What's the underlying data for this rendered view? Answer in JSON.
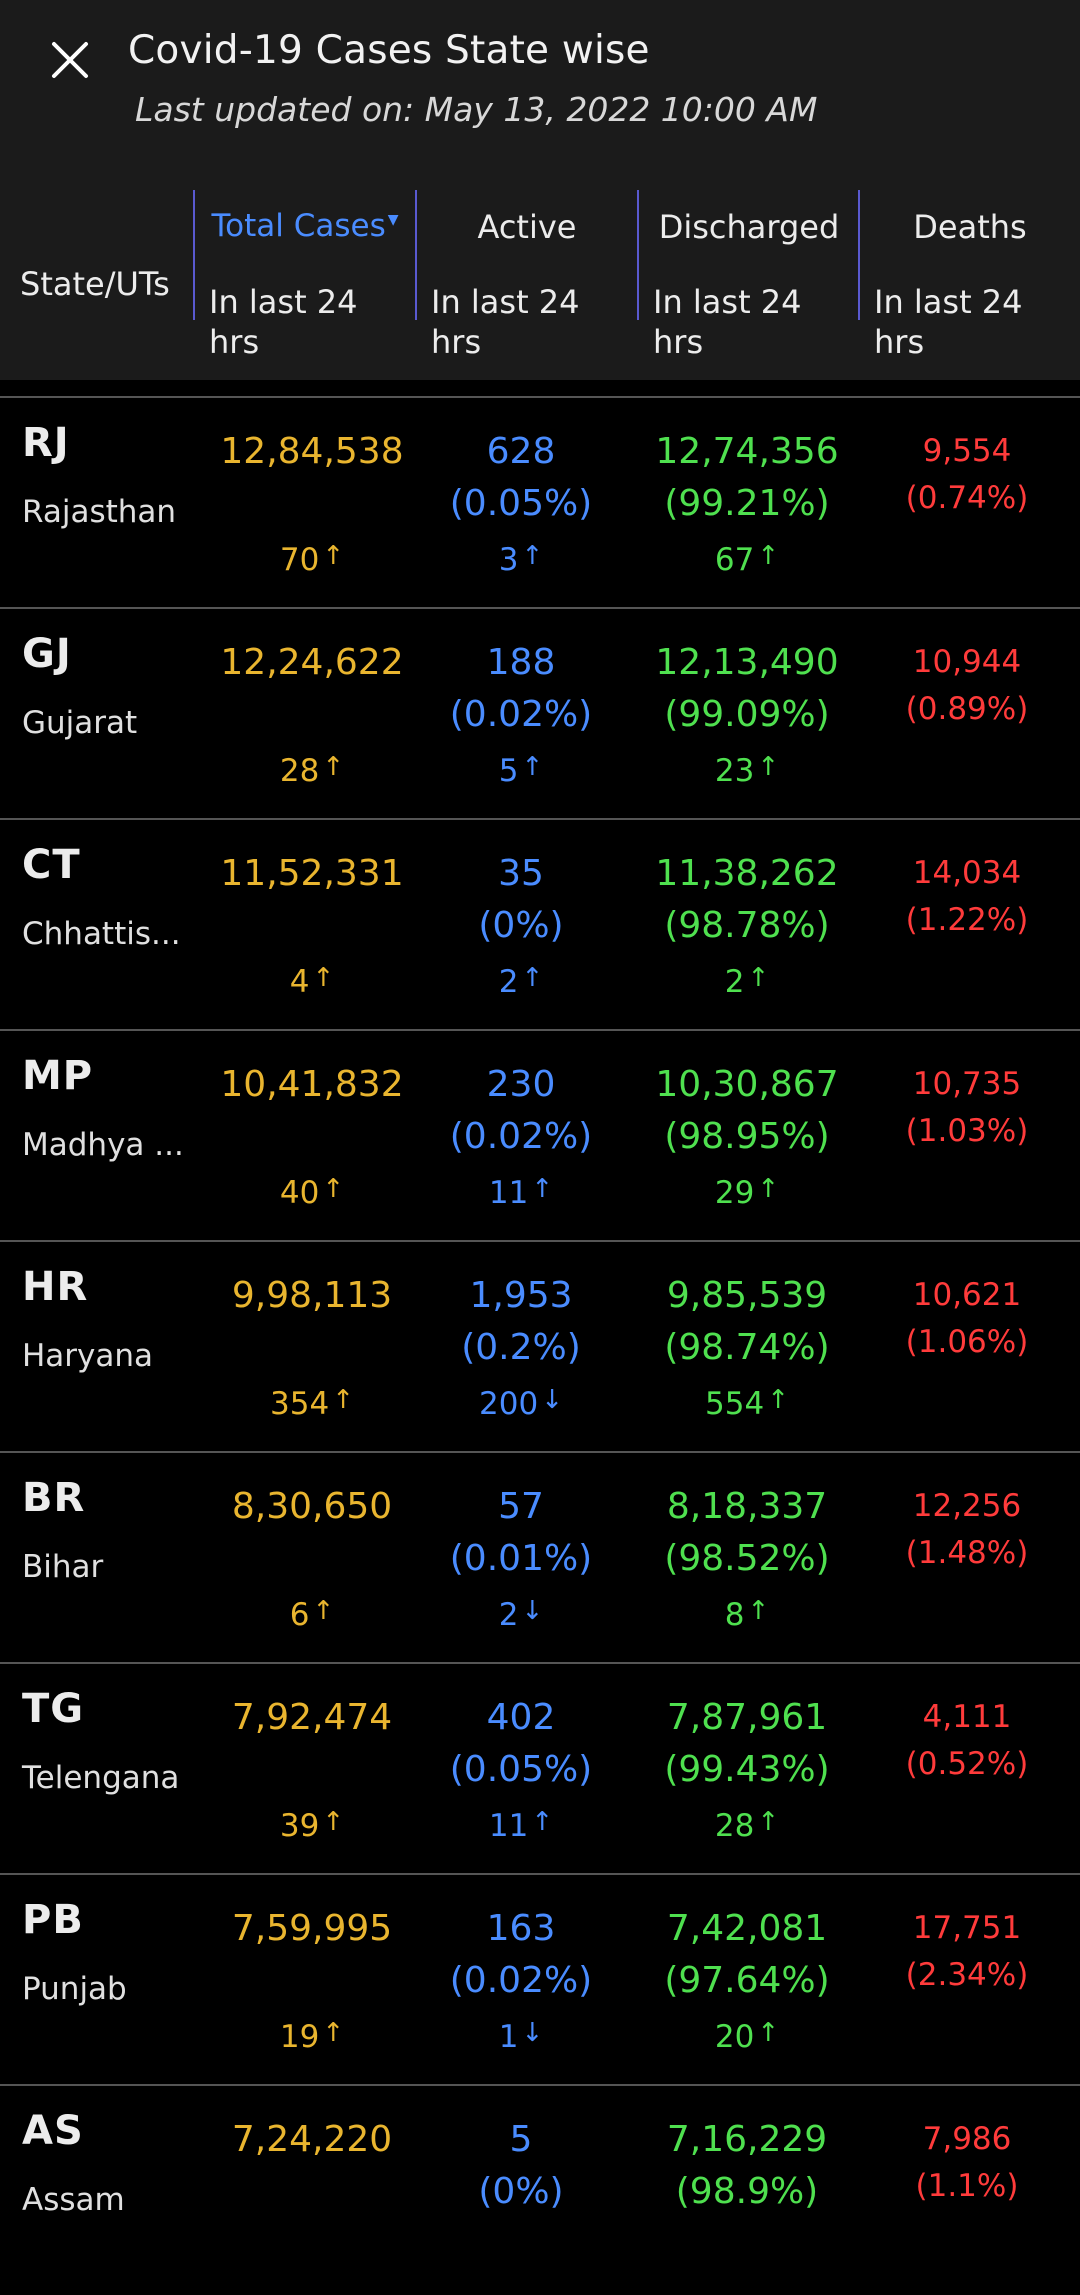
{
  "header": {
    "title": "Covid-19 Cases State wise",
    "last_updated": "Last updated on: May 13, 2022 10:00 AM",
    "close_icon": "close-icon"
  },
  "columns": {
    "state": "State/UTs",
    "total": {
      "label": "Total Cases",
      "sub": "In last 24 hrs"
    },
    "active": {
      "label": "Active",
      "sub": "In last 24 hrs"
    },
    "discharged": {
      "label": "Discharged",
      "sub": "In last 24 hrs"
    },
    "deaths": {
      "label": "Deaths",
      "sub": "In last 24 hrs"
    }
  },
  "colors": {
    "total": "#e9b52f",
    "active": "#4a8cff",
    "discharged": "#4fe04f",
    "deaths": "#ff3b3b"
  },
  "rows": [
    {
      "code": "RJ",
      "name": "Rajasthan",
      "total": "12,84,538",
      "total_delta": "70",
      "total_dir": "up",
      "active": "628",
      "active_pct": "(0.05%)",
      "active_delta": "3",
      "active_dir": "up",
      "discharged": "12,74,356",
      "discharged_pct": "(99.21%)",
      "discharged_delta": "67",
      "discharged_dir": "up",
      "deaths": "9,554",
      "deaths_pct": "(0.74%)"
    },
    {
      "code": "GJ",
      "name": "Gujarat",
      "total": "12,24,622",
      "total_delta": "28",
      "total_dir": "up",
      "active": "188",
      "active_pct": "(0.02%)",
      "active_delta": "5",
      "active_dir": "up",
      "discharged": "12,13,490",
      "discharged_pct": "(99.09%)",
      "discharged_delta": "23",
      "discharged_dir": "up",
      "deaths": "10,944",
      "deaths_pct": "(0.89%)"
    },
    {
      "code": "CT",
      "name": "Chhattis...",
      "total": "11,52,331",
      "total_delta": "4",
      "total_dir": "up",
      "active": "35",
      "active_pct": "(0%)",
      "active_delta": "2",
      "active_dir": "up",
      "discharged": "11,38,262",
      "discharged_pct": "(98.78%)",
      "discharged_delta": "2",
      "discharged_dir": "up",
      "deaths": "14,034",
      "deaths_pct": "(1.22%)"
    },
    {
      "code": "MP",
      "name": "Madhya ...",
      "total": "10,41,832",
      "total_delta": "40",
      "total_dir": "up",
      "active": "230",
      "active_pct": "(0.02%)",
      "active_delta": "11",
      "active_dir": "up",
      "discharged": "10,30,867",
      "discharged_pct": "(98.95%)",
      "discharged_delta": "29",
      "discharged_dir": "up",
      "deaths": "10,735",
      "deaths_pct": "(1.03%)"
    },
    {
      "code": "HR",
      "name": "Haryana",
      "total": "9,98,113",
      "total_delta": "354",
      "total_dir": "up",
      "active": "1,953",
      "active_pct": "(0.2%)",
      "active_delta": "200",
      "active_dir": "down",
      "discharged": "9,85,539",
      "discharged_pct": "(98.74%)",
      "discharged_delta": "554",
      "discharged_dir": "up",
      "deaths": "10,621",
      "deaths_pct": "(1.06%)"
    },
    {
      "code": "BR",
      "name": "Bihar",
      "total": "8,30,650",
      "total_delta": "6",
      "total_dir": "up",
      "active": "57",
      "active_pct": "(0.01%)",
      "active_delta": "2",
      "active_dir": "down",
      "discharged": "8,18,337",
      "discharged_pct": "(98.52%)",
      "discharged_delta": "8",
      "discharged_dir": "up",
      "deaths": "12,256",
      "deaths_pct": "(1.48%)"
    },
    {
      "code": "TG",
      "name": "Telengana",
      "total": "7,92,474",
      "total_delta": "39",
      "total_dir": "up",
      "active": "402",
      "active_pct": "(0.05%)",
      "active_delta": "11",
      "active_dir": "up",
      "discharged": "7,87,961",
      "discharged_pct": "(99.43%)",
      "discharged_delta": "28",
      "discharged_dir": "up",
      "deaths": "4,111",
      "deaths_pct": "(0.52%)"
    },
    {
      "code": "PB",
      "name": "Punjab",
      "total": "7,59,995",
      "total_delta": "19",
      "total_dir": "up",
      "active": "163",
      "active_pct": "(0.02%)",
      "active_delta": "1",
      "active_dir": "down",
      "discharged": "7,42,081",
      "discharged_pct": "(97.64%)",
      "discharged_delta": "20",
      "discharged_dir": "up",
      "deaths": "17,751",
      "deaths_pct": "(2.34%)"
    },
    {
      "code": "AS",
      "name": "Assam",
      "total": "7,24,220",
      "total_delta": "",
      "total_dir": "",
      "active": "5",
      "active_pct": "(0%)",
      "active_delta": "",
      "active_dir": "",
      "discharged": "7,16,229",
      "discharged_pct": "(98.9%)",
      "discharged_delta": "",
      "discharged_dir": "",
      "deaths": "7,986",
      "deaths_pct": "(1.1%)"
    }
  ]
}
